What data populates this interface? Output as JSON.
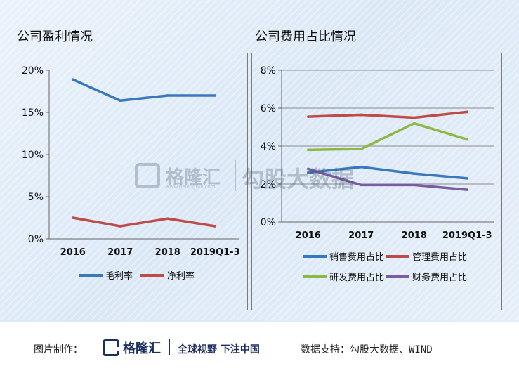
{
  "chart_data": [
    {
      "type": "line",
      "title": "公司盈利情况",
      "categories": [
        "2016",
        "2017",
        "2018",
        "2019Q1-3"
      ],
      "yticks": [
        "0%",
        "5%",
        "10%",
        "15%",
        "20%"
      ],
      "ylim": [
        0,
        20
      ],
      "grid": false,
      "legend": "bottom",
      "series": [
        {
          "name": "毛利率",
          "color": "#3a78bd",
          "values": [
            18.9,
            16.4,
            17.0,
            17.0
          ]
        },
        {
          "name": "净利率",
          "color": "#be4b48",
          "values": [
            2.5,
            1.5,
            2.4,
            1.5
          ]
        }
      ]
    },
    {
      "type": "line",
      "title": "公司费用占比情况",
      "categories": [
        "2016",
        "2017",
        "2018",
        "2019Q1-3"
      ],
      "yticks": [
        "0%",
        "2%",
        "4%",
        "6%",
        "8%"
      ],
      "ylim": [
        0,
        8
      ],
      "grid": true,
      "legend": "bottom",
      "series": [
        {
          "name": "销售费用占比",
          "color": "#3a78bd",
          "values": [
            2.6,
            2.9,
            2.55,
            2.3
          ]
        },
        {
          "name": "管理费用占比",
          "color": "#be4b48",
          "values": [
            5.55,
            5.65,
            5.5,
            5.8
          ]
        },
        {
          "name": "研发费用占比",
          "color": "#8cb845",
          "values": [
            3.8,
            3.85,
            5.2,
            4.35
          ]
        },
        {
          "name": "财务费用占比",
          "color": "#7b5ca3",
          "values": [
            2.8,
            1.95,
            1.95,
            1.7
          ]
        }
      ]
    }
  ],
  "watermark": {
    "brand": "格隆汇",
    "url": "www.gelonghui.com",
    "name": "勾股大数据"
  },
  "footer": {
    "label": "图片制作：",
    "brand": "格隆汇",
    "slogan": "全球视野 下注中国",
    "source": "数据支持：勾股大数据、WIND"
  }
}
